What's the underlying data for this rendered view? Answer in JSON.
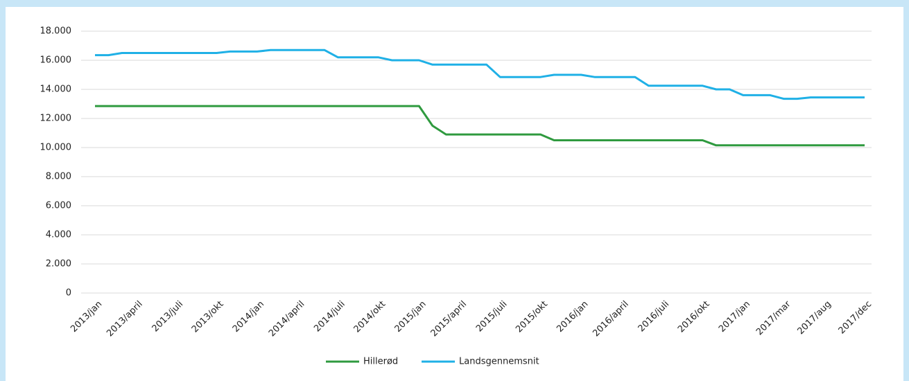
{
  "chart_data": {
    "type": "line",
    "categories": [
      "2013/jan",
      null,
      null,
      "2013/april",
      null,
      null,
      "2013/juli",
      null,
      null,
      "2013/okt",
      null,
      null,
      "2014/jan",
      null,
      null,
      "2014/april",
      null,
      null,
      "2014/juli",
      null,
      null,
      "2014/okt",
      null,
      null,
      "2015/jan",
      null,
      null,
      "2015/april",
      null,
      null,
      "2015/juli",
      null,
      null,
      "2015/okt",
      null,
      null,
      "2016/jan",
      null,
      null,
      "2016/april",
      null,
      null,
      "2016/juli",
      null,
      null,
      "2016/okt",
      null,
      null,
      "2017/jan",
      null,
      null,
      "2017/mar",
      null,
      null,
      "2017/aug",
      null,
      null,
      "2017/dec"
    ],
    "series": [
      {
        "name": "Hillerød",
        "color": "#2f9a3f",
        "values": [
          12850,
          12850,
          12850,
          12850,
          12850,
          12850,
          12850,
          12850,
          12850,
          12850,
          12850,
          12850,
          12850,
          12850,
          12850,
          12850,
          12850,
          12850,
          12850,
          12850,
          12850,
          12850,
          12850,
          12850,
          12850,
          11500,
          10900,
          10900,
          10900,
          10900,
          10900,
          10900,
          10900,
          10900,
          10500,
          10500,
          10500,
          10500,
          10500,
          10500,
          10500,
          10500,
          10500,
          10500,
          10500,
          10500,
          10150,
          10150,
          10150,
          10150,
          10150,
          10150,
          10150,
          10150,
          10150,
          10150,
          10150,
          10150
        ]
      },
      {
        "name": "Landsgennemsnit",
        "color": "#1fb0e6",
        "values": [
          16350,
          16350,
          16500,
          16500,
          16500,
          16500,
          16500,
          16500,
          16500,
          16500,
          16600,
          16600,
          16600,
          16700,
          16700,
          16700,
          16700,
          16700,
          16200,
          16200,
          16200,
          16200,
          16000,
          16000,
          16000,
          15700,
          15700,
          15700,
          15700,
          15700,
          14850,
          14850,
          14850,
          14850,
          15000,
          15000,
          15000,
          14850,
          14850,
          14850,
          14850,
          14250,
          14250,
          14250,
          14250,
          14250,
          14000,
          14000,
          13600,
          13600,
          13600,
          13350,
          13350,
          13450,
          13450,
          13450,
          13450,
          13450
        ]
      }
    ],
    "ylim": [
      0,
      18000
    ],
    "yticks": [
      0,
      {
        "value": 2000,
        "label": "2.000"
      },
      {
        "value": 4000,
        "label": "4.000"
      },
      {
        "value": 6000,
        "label": "6.000"
      },
      {
        "value": 8000,
        "label": "8.000"
      },
      {
        "value": 10000,
        "label": "10.000"
      },
      {
        "value": 12000,
        "label": "12.000"
      },
      {
        "value": 14000,
        "label": "14.000"
      },
      {
        "value": 16000,
        "label": "16.000"
      },
      {
        "value": 18000,
        "label": "18.000"
      }
    ],
    "grid": true,
    "legend": "bottom"
  }
}
